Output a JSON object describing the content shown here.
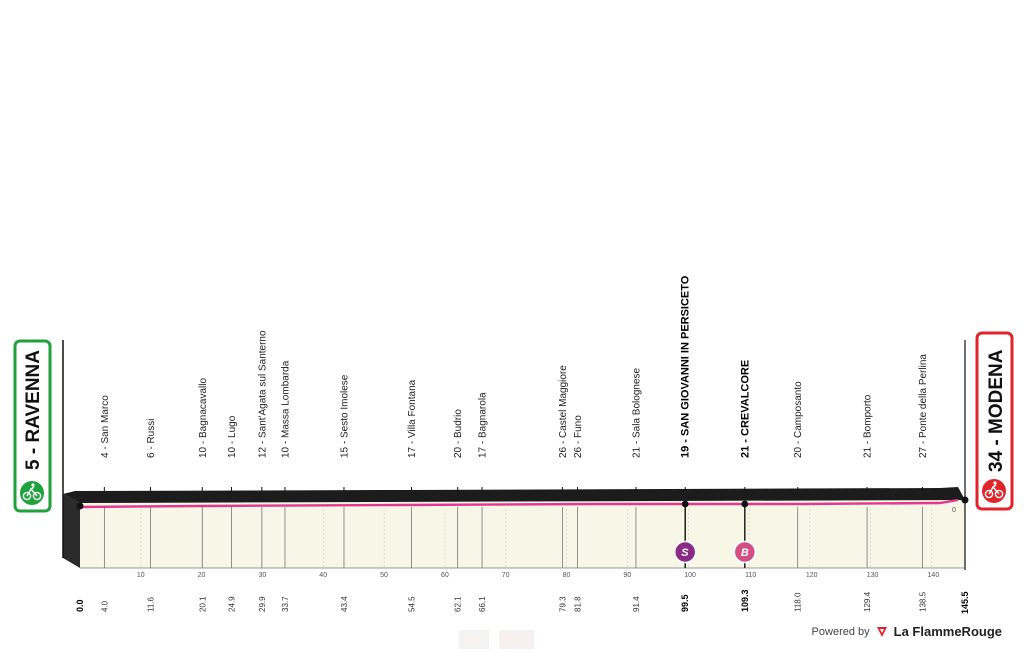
{
  "start": {
    "label": "5 - RAVENNA",
    "color": "#1fa13b",
    "icon": "cyclist-start-icon"
  },
  "finish": {
    "label": "34 - MODENA",
    "color": "#e0242b",
    "icon": "cyclist-finish-icon"
  },
  "colors": {
    "profile_top": "#1c1c1c",
    "profile_fill": "#f7f6e7",
    "route_line": "#e2388f",
    "sprint_badge": "#8a2c86",
    "bonus_badge": "#d24f86"
  },
  "waypoints": [
    {
      "label": "4 - San Marco",
      "km": "4.0",
      "major": false
    },
    {
      "label": "6 - Russi",
      "km": "11.6",
      "major": false
    },
    {
      "label": "10 - Bagnacavallo",
      "km": "20.1",
      "major": false
    },
    {
      "label": "10 - Lugo",
      "km": "24.9",
      "major": false
    },
    {
      "label": "12 - Sant'Agata sul Santerno",
      "km": "29.9",
      "major": false
    },
    {
      "label": "10 - Massa Lombarda",
      "km": "33.7",
      "major": false
    },
    {
      "label": "15 - Sesto Imolese",
      "km": "43.4",
      "major": false
    },
    {
      "label": "17 - Villa Fontana",
      "km": "54.5",
      "major": false
    },
    {
      "label": "20 - Budrio",
      "km": "62.1",
      "major": false
    },
    {
      "label": "17 - Bagnarola",
      "km": "66.1",
      "major": false
    },
    {
      "label": "26 - Castel Maggiore",
      "km": "79.3",
      "major": false
    },
    {
      "label": "26 - Funo",
      "km": "81.8",
      "major": false
    },
    {
      "label": "21 - Sala Bolognese",
      "km": "91.4",
      "major": false
    },
    {
      "label": "19 - SAN GIOVANNI IN PERSICETO",
      "km": "99.5",
      "major": true
    },
    {
      "label": "21 - CREVALCORE",
      "km": "109.3",
      "major": true
    },
    {
      "label": "20 - Camposanto",
      "km": "118.0",
      "major": false
    },
    {
      "label": "21 - Bomporto",
      "km": "129.4",
      "major": false
    },
    {
      "label": "27 - Ponte della Perlina",
      "km": "138.5",
      "major": false
    }
  ],
  "start_km": "0.0",
  "finish_km": "145.5",
  "axis_ticks": [
    "10",
    "20",
    "30",
    "40",
    "50",
    "60",
    "70",
    "80",
    "90",
    "100",
    "110",
    "120",
    "130",
    "140"
  ],
  "end_marker": "0",
  "badges": [
    {
      "letter": "S",
      "at_km": "99.5",
      "name": "sprint-badge"
    },
    {
      "letter": "B",
      "at_km": "109.3",
      "name": "bonus-badge"
    }
  ],
  "footer": {
    "powered_by": "Powered by",
    "brand": "La FlammeRouge"
  }
}
